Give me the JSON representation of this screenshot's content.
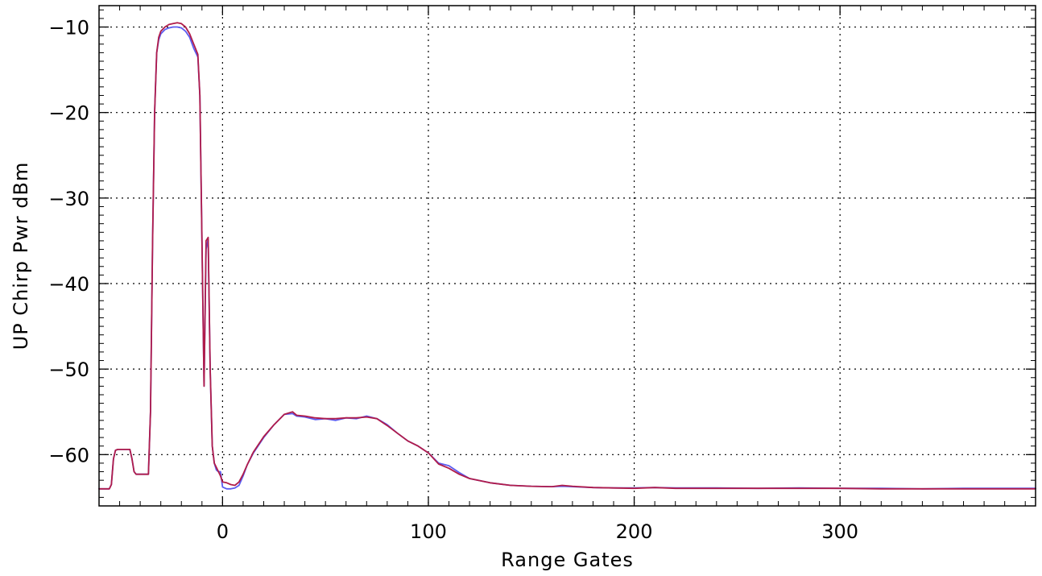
{
  "chart_data": {
    "type": "line",
    "title": "",
    "xlabel": "Range Gates",
    "ylabel": "UP Chirp Pwr dBm",
    "xlim": [
      -60,
      395
    ],
    "ylim": [
      -66,
      -7.5
    ],
    "xticks": [
      0,
      100,
      200,
      300
    ],
    "xtick_labels": [
      "0",
      "100",
      "200",
      "300"
    ],
    "yticks": [
      -10,
      -20,
      -30,
      -40,
      -50,
      -60
    ],
    "ytick_labels": [
      "−10",
      "−20",
      "−30",
      "−40",
      "−50",
      "−60"
    ],
    "grid": true,
    "grid_style": "dotted",
    "legend": "none",
    "colors": {
      "series_1": "#5b5bf0",
      "series_2": "#b01c4a",
      "axes": "#000000",
      "grid": "#000000"
    },
    "series": [
      {
        "color": "#5b5bf0",
        "x": [
          -60,
          -55,
          -54,
          -53,
          -52,
          -51,
          -50,
          -45,
          -44,
          -43,
          -42,
          -36,
          -35,
          -34,
          -33,
          -32,
          -31,
          -30,
          -28,
          -26,
          -24,
          -22,
          -20,
          -18,
          -16,
          -14,
          -12,
          -11,
          -10,
          -9,
          -8,
          -7,
          -6,
          -5,
          -4,
          -3,
          -2,
          -1,
          0,
          2,
          4,
          6,
          8,
          10,
          12,
          15,
          20,
          25,
          30,
          34,
          36,
          40,
          45,
          50,
          55,
          60,
          65,
          70,
          75,
          80,
          85,
          90,
          95,
          100,
          105,
          110,
          115,
          120,
          130,
          140,
          150,
          160,
          165,
          170,
          180,
          190,
          200,
          210,
          220,
          240,
          260,
          280,
          300,
          320,
          340,
          360,
          380,
          395
        ],
        "y": [
          -64,
          -64,
          -63.5,
          -60.5,
          -59.5,
          -59.4,
          -59.4,
          -59.4,
          -60.5,
          -62,
          -62.3,
          -62.3,
          -55,
          -35,
          -20,
          -13,
          -11.5,
          -10.8,
          -10.3,
          -10.1,
          -10.0,
          -10.0,
          -10.1,
          -10.5,
          -11.2,
          -12.5,
          -13.5,
          -18,
          -35,
          -52,
          -36,
          -34.8,
          -50,
          -59,
          -61,
          -61.8,
          -62,
          -62,
          -63.8,
          -64.0,
          -64.0,
          -63.9,
          -63.6,
          -62.5,
          -61.2,
          -59.8,
          -58.0,
          -56.5,
          -55.3,
          -55.2,
          -55.5,
          -55.6,
          -55.9,
          -55.8,
          -56.0,
          -55.7,
          -55.8,
          -55.5,
          -55.8,
          -56.5,
          -57.5,
          -58.4,
          -59,
          -59.8,
          -61.0,
          -61.3,
          -62.1,
          -62.8,
          -63.3,
          -63.6,
          -63.7,
          -63.75,
          -63.7,
          -63.75,
          -63.85,
          -63.9,
          -63.9,
          -63.85,
          -63.9,
          -63.9,
          -63.95,
          -63.9,
          -63.95,
          -63.95,
          -64.0,
          -63.95,
          -63.95,
          -63.95
        ]
      },
      {
        "color": "#b01c4a",
        "x": [
          -60,
          -55,
          -54,
          -53,
          -52,
          -51,
          -50,
          -45,
          -44,
          -43,
          -42,
          -36,
          -35,
          -34,
          -33,
          -32,
          -31,
          -30,
          -28,
          -26,
          -24,
          -22,
          -20,
          -18,
          -16,
          -14,
          -12,
          -11,
          -10,
          -9,
          -8,
          -7,
          -6,
          -5,
          -4,
          -3,
          -2,
          -1,
          0,
          2,
          4,
          6,
          8,
          10,
          12,
          15,
          20,
          25,
          30,
          34,
          36,
          40,
          45,
          50,
          55,
          60,
          65,
          70,
          75,
          80,
          85,
          90,
          95,
          100,
          105,
          110,
          115,
          120,
          130,
          140,
          150,
          160,
          165,
          170,
          180,
          190,
          200,
          210,
          220,
          240,
          260,
          280,
          300,
          320,
          340,
          360,
          380,
          395
        ],
        "y": [
          -64,
          -64,
          -63.5,
          -60.5,
          -59.5,
          -59.4,
          -59.4,
          -59.4,
          -60.5,
          -62,
          -62.3,
          -62.3,
          -55,
          -35,
          -20,
          -13,
          -11.2,
          -10.5,
          -10.0,
          -9.7,
          -9.6,
          -9.5,
          -9.6,
          -10.0,
          -10.8,
          -12.0,
          -13.2,
          -18,
          -35,
          -52,
          -35,
          -34.6,
          -50,
          -59,
          -61,
          -61.5,
          -62,
          -62.5,
          -63.2,
          -63.3,
          -63.5,
          -63.6,
          -63.2,
          -62.3,
          -61.2,
          -59.7,
          -57.9,
          -56.5,
          -55.3,
          -55.0,
          -55.4,
          -55.5,
          -55.7,
          -55.8,
          -55.8,
          -55.7,
          -55.7,
          -55.6,
          -55.8,
          -56.6,
          -57.5,
          -58.4,
          -59,
          -59.8,
          -61.1,
          -61.6,
          -62.3,
          -62.8,
          -63.3,
          -63.6,
          -63.7,
          -63.75,
          -63.6,
          -63.7,
          -63.85,
          -63.9,
          -63.95,
          -63.85,
          -63.95,
          -63.95,
          -63.95,
          -63.95,
          -63.95,
          -64.0,
          -64.0,
          -64.0,
          -64.0,
          -64.0
        ]
      }
    ]
  }
}
